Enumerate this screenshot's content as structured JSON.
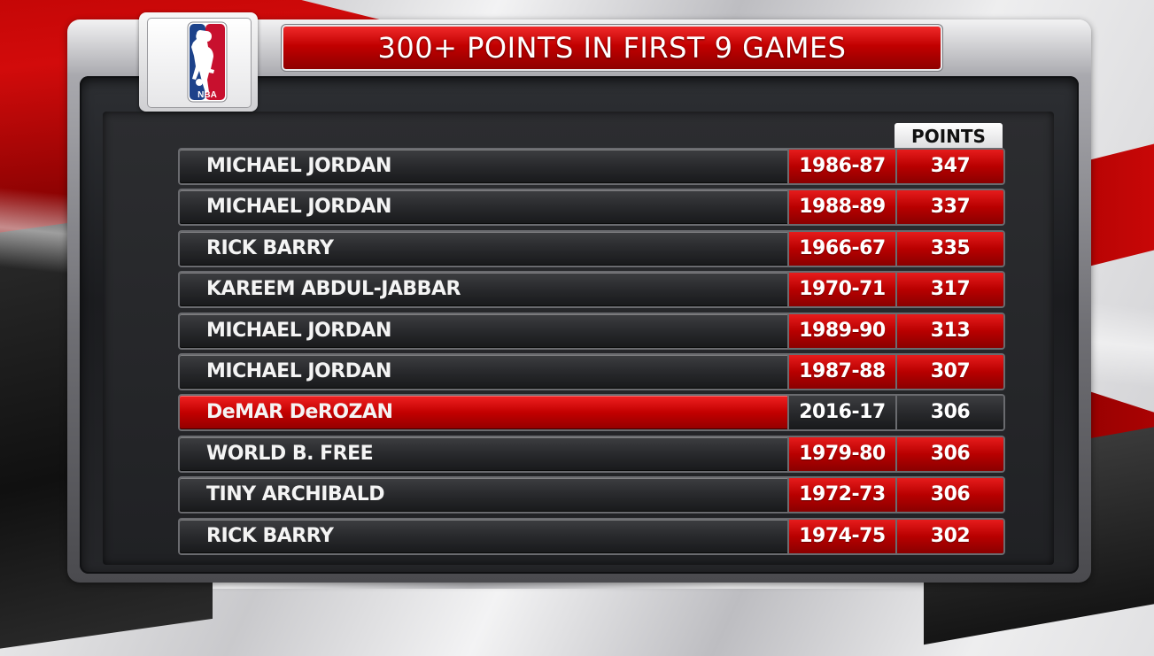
{
  "title": "300+ POINTS IN FIRST 9 GAMES",
  "logo": {
    "text": "NBA",
    "icon": "nba-logo-icon"
  },
  "columns": {
    "points_header": "POINTS"
  },
  "rows": [
    {
      "name": "MICHAEL JORDAN",
      "season": "1986-87",
      "points": "347",
      "highlight": false
    },
    {
      "name": "MICHAEL JORDAN",
      "season": "1988-89",
      "points": "337",
      "highlight": false
    },
    {
      "name": "RICK BARRY",
      "season": "1966-67",
      "points": "335",
      "highlight": false
    },
    {
      "name": "KAREEM ABDUL-JABBAR",
      "season": "1970-71",
      "points": "317",
      "highlight": false
    },
    {
      "name": "MICHAEL JORDAN",
      "season": "1989-90",
      "points": "313",
      "highlight": false
    },
    {
      "name": "MICHAEL JORDAN",
      "season": "1987-88",
      "points": "307",
      "highlight": false
    },
    {
      "name": "DeMAR DeROZAN",
      "season": "2016-17",
      "points": "306",
      "highlight": true
    },
    {
      "name": "WORLD B. FREE",
      "season": "1979-80",
      "points": "306",
      "highlight": false
    },
    {
      "name": "TINY ARCHIBALD",
      "season": "1972-73",
      "points": "306",
      "highlight": false
    },
    {
      "name": "RICK BARRY",
      "season": "1974-75",
      "points": "302",
      "highlight": false
    }
  ],
  "colors": {
    "accent_red": "#c10000",
    "dark": "#1b1c1f",
    "logo_blue": "#1d428a",
    "logo_red": "#c8102e"
  }
}
